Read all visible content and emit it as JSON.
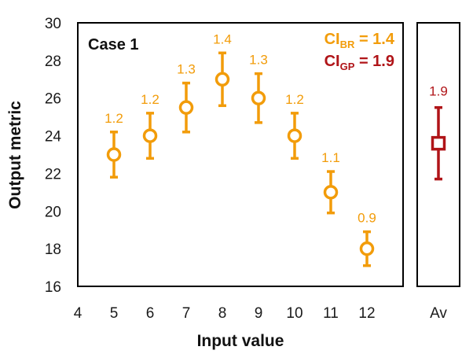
{
  "chart_data": [
    {
      "type": "scatter",
      "panel": "main",
      "case_label": "Case 1",
      "xlabel": "Input value",
      "ylabel": "Output metric",
      "xlim": [
        4,
        13
      ],
      "ylim": [
        16,
        30
      ],
      "xticks": [
        "4",
        "5",
        "6",
        "7",
        "8",
        "9",
        "10",
        "11",
        "12"
      ],
      "yticks": [
        "16",
        "18",
        "20",
        "22",
        "24",
        "26",
        "28",
        "30"
      ],
      "legend_text": {
        "br_prefix": "CI",
        "br_sub": "BR",
        "br_value": " = 1.4",
        "gp_prefix": "CI",
        "gp_sub": "GP",
        "gp_value": " = 1.9"
      },
      "series": [
        {
          "color": "#f29c0a",
          "marker": "circle-open",
          "points": [
            {
              "x": 5,
              "y": 23.0,
              "err": 1.2,
              "label": "1.2"
            },
            {
              "x": 6,
              "y": 24.0,
              "err": 1.2,
              "label": "1.2"
            },
            {
              "x": 7,
              "y": 25.5,
              "err": 1.3,
              "label": "1.3"
            },
            {
              "x": 8,
              "y": 27.0,
              "err": 1.4,
              "label": "1.4"
            },
            {
              "x": 9,
              "y": 26.0,
              "err": 1.3,
              "label": "1.3"
            },
            {
              "x": 10,
              "y": 24.0,
              "err": 1.2,
              "label": "1.2"
            },
            {
              "x": 11,
              "y": 21.0,
              "err": 1.1,
              "label": "1.1"
            },
            {
              "x": 12,
              "y": 18.0,
              "err": 0.9,
              "label": "0.9"
            }
          ]
        }
      ]
    },
    {
      "type": "scatter",
      "panel": "average",
      "xtick": "Av",
      "ylim": [
        16,
        30
      ],
      "series": [
        {
          "color": "#b01418",
          "marker": "square-open",
          "points": [
            {
              "x": "Av",
              "y": 23.6,
              "err": 1.9,
              "label": "1.9"
            }
          ]
        }
      ]
    }
  ],
  "colors": {
    "br": "#f29c0a",
    "gp": "#b01418",
    "axis": "#000000"
  }
}
